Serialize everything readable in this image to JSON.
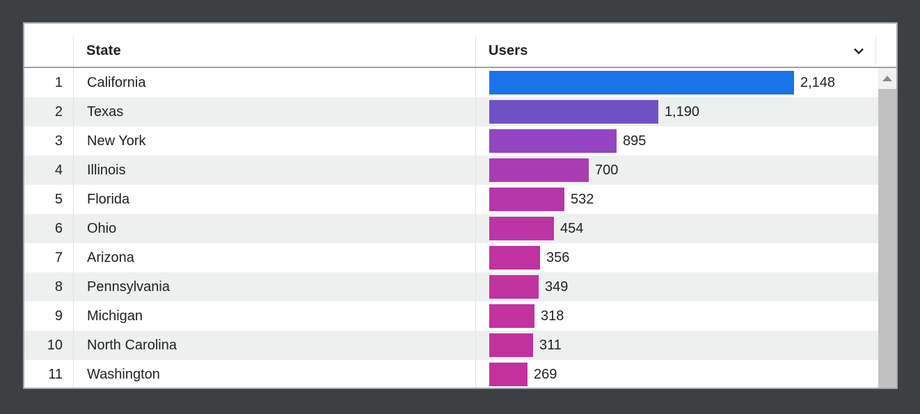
{
  "window": {
    "background_color": "#3c4043"
  },
  "table": {
    "columns": {
      "state_label": "State",
      "users_label": "Users"
    },
    "max_users": 2148,
    "rows": [
      {
        "rank": "1",
        "state": "California",
        "users": 2148,
        "users_display": "2,148",
        "bar_color": "#1a73e8"
      },
      {
        "rank": "2",
        "state": "Texas",
        "users": 1190,
        "users_display": "1,190",
        "bar_color": "#7150c5"
      },
      {
        "rank": "3",
        "state": "New York",
        "users": 895,
        "users_display": "895",
        "bar_color": "#9444c0"
      },
      {
        "rank": "4",
        "state": "Illinois",
        "users": 700,
        "users_display": "700",
        "bar_color": "#a93cb2"
      },
      {
        "rank": "5",
        "state": "Florida",
        "users": 532,
        "users_display": "532",
        "bar_color": "#b438aa"
      },
      {
        "rank": "6",
        "state": "Ohio",
        "users": 454,
        "users_display": "454",
        "bar_color": "#bb35a6"
      },
      {
        "rank": "7",
        "state": "Arizona",
        "users": 356,
        "users_display": "356",
        "bar_color": "#c133a1"
      },
      {
        "rank": "8",
        "state": "Pennsylvania",
        "users": 349,
        "users_display": "349",
        "bar_color": "#c133a1"
      },
      {
        "rank": "9",
        "state": "Michigan",
        "users": 318,
        "users_display": "318",
        "bar_color": "#c232a0"
      },
      {
        "rank": "10",
        "state": "North Carolina",
        "users": 311,
        "users_display": "311",
        "bar_color": "#c2329f"
      },
      {
        "rank": "11",
        "state": "Washington",
        "users": 269,
        "users_display": "269",
        "bar_color": "#c4319e"
      }
    ]
  },
  "icons": {
    "sort_menu": "chevron-down-icon",
    "scroll_up": "triangle-up-icon"
  },
  "chart_data": {
    "type": "bar",
    "orientation": "horizontal",
    "categories": [
      "California",
      "Texas",
      "New York",
      "Illinois",
      "Florida",
      "Ohio",
      "Arizona",
      "Pennsylvania",
      "Michigan",
      "North Carolina",
      "Washington"
    ],
    "values": [
      2148,
      1190,
      895,
      700,
      532,
      454,
      356,
      349,
      318,
      311,
      269
    ],
    "value_labels": [
      "2,148",
      "1,190",
      "895",
      "700",
      "532",
      "454",
      "356",
      "349",
      "318",
      "311",
      "269"
    ],
    "title": "",
    "xlabel": "Users",
    "ylabel": "State",
    "xlim": [
      0,
      2148
    ],
    "grid": false,
    "legend": "none",
    "bar_colors": [
      "#1a73e8",
      "#7150c5",
      "#9444c0",
      "#a93cb2",
      "#b438aa",
      "#bb35a6",
      "#c133a1",
      "#c133a1",
      "#c232a0",
      "#c2329f",
      "#c4319e"
    ]
  }
}
